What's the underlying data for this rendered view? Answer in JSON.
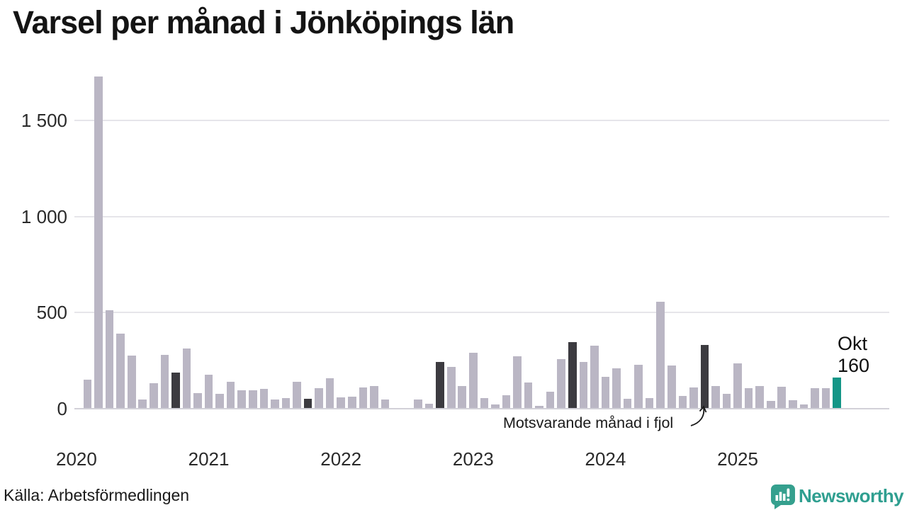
{
  "title": "Varsel per månad i Jönköpings län",
  "source": "Källa: Arbetsförmedlingen",
  "brand": {
    "name": "Newsworthy",
    "color": "#2f9f90"
  },
  "annotation": {
    "text": "Motsvarande månad i fjol",
    "target_month": "2024-10"
  },
  "current_label": {
    "month": "Okt",
    "value": "160"
  },
  "colors": {
    "bar": "#bab6c4",
    "highlight_fjol": "#3c3b40",
    "current": "#149687",
    "grid": "#e6e5ea",
    "axis_zero_line": "#d2d1d8",
    "text": "#2a2a2a"
  },
  "chart_data": {
    "type": "bar",
    "title": "Varsel per månad i Jönköpings län",
    "xlabel": "",
    "ylabel": "",
    "ylim": [
      0,
      1750
    ],
    "grid": true,
    "legend": false,
    "yticks": [
      {
        "v": 0,
        "label": "0"
      },
      {
        "v": 500,
        "label": "500"
      },
      {
        "v": 1000,
        "label": "1 000"
      },
      {
        "v": 1500,
        "label": "1 500"
      }
    ],
    "year_labels": [
      "2020",
      "2021",
      "2022",
      "2023",
      "2024",
      "2025"
    ],
    "series": [
      {
        "name": "Varsel per månad",
        "points": [
          [
            "2020-02",
            150
          ],
          [
            "2020-03",
            1730
          ],
          [
            "2020-04",
            510
          ],
          [
            "2020-05",
            390
          ],
          [
            "2020-06",
            275
          ],
          [
            "2020-07",
            45
          ],
          [
            "2020-08",
            130
          ],
          [
            "2020-09",
            280
          ],
          [
            "2020-10",
            185,
            "fjol"
          ],
          [
            "2020-11",
            310
          ],
          [
            "2020-12",
            80
          ],
          [
            "2021-01",
            175
          ],
          [
            "2021-02",
            75
          ],
          [
            "2021-03",
            140
          ],
          [
            "2021-04",
            95
          ],
          [
            "2021-05",
            95
          ],
          [
            "2021-06",
            100
          ],
          [
            "2021-07",
            45
          ],
          [
            "2021-08",
            55
          ],
          [
            "2021-09",
            140
          ],
          [
            "2021-10",
            50,
            "fjol"
          ],
          [
            "2021-11",
            105
          ],
          [
            "2021-12",
            155
          ],
          [
            "2022-01",
            57
          ],
          [
            "2022-02",
            60
          ],
          [
            "2022-03",
            110
          ],
          [
            "2022-04",
            115
          ],
          [
            "2022-05",
            45
          ],
          [
            "2022-06",
            0
          ],
          [
            "2022-07",
            0
          ],
          [
            "2022-08",
            45
          ],
          [
            "2022-09",
            25
          ],
          [
            "2022-10",
            240,
            "fjol"
          ],
          [
            "2022-11",
            215
          ],
          [
            "2022-12",
            115
          ],
          [
            "2023-01",
            290
          ],
          [
            "2023-02",
            55
          ],
          [
            "2023-03",
            22
          ],
          [
            "2023-04",
            70
          ],
          [
            "2023-05",
            270
          ],
          [
            "2023-06",
            135
          ],
          [
            "2023-07",
            12
          ],
          [
            "2023-08",
            85
          ],
          [
            "2023-09",
            255
          ],
          [
            "2023-10",
            345,
            "fjol"
          ],
          [
            "2023-11",
            240
          ],
          [
            "2023-12",
            325
          ],
          [
            "2024-01",
            165
          ],
          [
            "2024-02",
            210
          ],
          [
            "2024-03",
            50
          ],
          [
            "2024-04",
            228
          ],
          [
            "2024-05",
            55
          ],
          [
            "2024-06",
            555
          ],
          [
            "2024-07",
            222
          ],
          [
            "2024-08",
            65
          ],
          [
            "2024-09",
            110
          ],
          [
            "2024-10",
            330,
            "fjol"
          ],
          [
            "2024-11",
            115
          ],
          [
            "2024-12",
            75
          ],
          [
            "2025-01",
            235
          ],
          [
            "2025-02",
            105
          ],
          [
            "2025-03",
            115
          ],
          [
            "2025-04",
            38
          ],
          [
            "2025-05",
            111
          ],
          [
            "2025-06",
            44
          ],
          [
            "2025-07",
            21
          ],
          [
            "2025-08",
            104
          ],
          [
            "2025-09",
            104
          ],
          [
            "2025-10",
            160,
            "current"
          ]
        ]
      }
    ]
  }
}
